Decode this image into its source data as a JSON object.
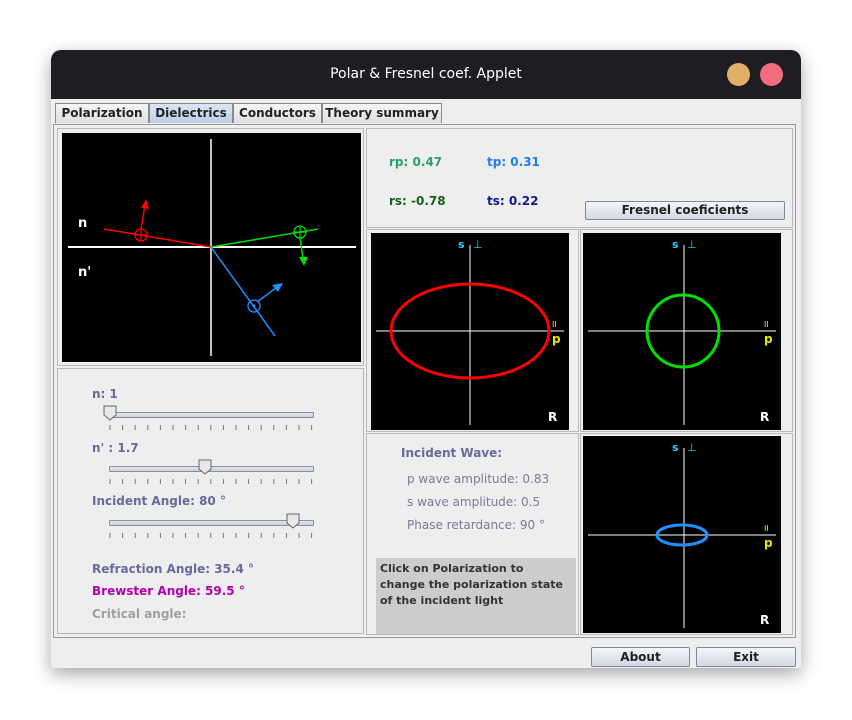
{
  "window": {
    "title": "Polar & Fresnel coef. Applet"
  },
  "tabs": [
    {
      "label": "Polarization",
      "active": false
    },
    {
      "label": "Dielectrics",
      "active": true
    },
    {
      "label": "Conductors",
      "active": false
    },
    {
      "label": "Theory summary",
      "active": false
    }
  ],
  "diagram": {
    "n_label": "n",
    "n_prime_label": "n'"
  },
  "controls": {
    "n_label": "n: 1",
    "n_value": 1,
    "n_fraction": 0.0,
    "nprime_label": "n' : 1.7",
    "nprime_value": 1.7,
    "nprime_fraction": 0.47,
    "angle_label": "Incident Angle: 80 °",
    "angle_value": 80,
    "angle_fraction": 0.89,
    "refraction": "Refraction Angle: 35.4 °",
    "brewster": "Brewster Angle: 59.5 °",
    "critical": "Critical angle:"
  },
  "coefficients": {
    "rp": "rp: 0.47",
    "tp": "tp: 0.31",
    "rs": "rs: -0.78",
    "ts": "ts: 0.22",
    "button": "Fresnel coeficients"
  },
  "plots": {
    "s_label": "s",
    "perp": "⊥",
    "par": "II",
    "p_label": "p",
    "r_label": "R"
  },
  "incident": {
    "title": "Incident Wave:",
    "p_amp": "p wave amplitude: 0.83",
    "s_amp": "s wave amplitude: 0.5",
    "phase": "Phase retardance: 90 °",
    "note": "Click on Polarization to change the polarization state of the incident light"
  },
  "footer": {
    "about": "About",
    "exit": "Exit"
  },
  "colors": {
    "reflected": "#ff0000",
    "transmitted": "#00e000",
    "incident": "#1e90ff",
    "axis_label": "#30d0ff",
    "p_label": "#e8e800",
    "rp": "#2aa06a",
    "tp": "#1e7de8",
    "rs": "#1a5e1a",
    "ts": "#101890",
    "brewster": "#b000b0",
    "refraction": "#6a6a9a",
    "critical": "#a0a0a0",
    "min_button": "#e0b06a",
    "close_button": "#f06c7e"
  }
}
